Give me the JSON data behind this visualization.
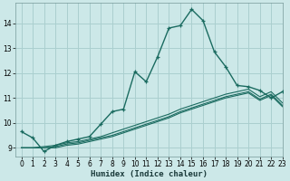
{
  "xlabel": "Humidex (Indice chaleur)",
  "bg_color": "#cce8e8",
  "grid_color": "#aacfcf",
  "line_color": "#1a6b60",
  "xlim": [
    -0.5,
    23
  ],
  "ylim": [
    8.65,
    14.8
  ],
  "yticks": [
    9,
    10,
    11,
    12,
    13,
    14
  ],
  "xticks": [
    0,
    1,
    2,
    3,
    4,
    5,
    6,
    7,
    8,
    9,
    10,
    11,
    12,
    13,
    14,
    15,
    16,
    17,
    18,
    19,
    20,
    21,
    22,
    23
  ],
  "curve1_x": [
    0,
    1,
    2,
    3,
    4,
    5,
    6,
    7,
    8,
    9,
    10,
    11,
    12,
    13,
    14,
    15,
    16,
    17,
    18,
    19,
    20,
    21,
    22,
    23
  ],
  "curve1_y": [
    9.65,
    9.4,
    8.85,
    9.1,
    9.25,
    9.35,
    9.45,
    9.95,
    10.45,
    10.55,
    12.05,
    11.65,
    12.65,
    13.8,
    13.9,
    14.55,
    14.1,
    12.85,
    12.25,
    11.5,
    11.45,
    11.3,
    11.0,
    11.25
  ],
  "curve2_x": [
    0,
    1,
    2,
    3,
    4,
    5,
    6,
    7,
    8,
    9,
    10,
    11,
    12,
    13,
    14,
    15,
    16,
    17,
    18,
    19,
    20,
    21,
    22,
    23
  ],
  "curve2_y": [
    9.0,
    9.0,
    9.05,
    9.1,
    9.2,
    9.25,
    9.35,
    9.45,
    9.6,
    9.75,
    9.9,
    10.05,
    10.2,
    10.35,
    10.55,
    10.7,
    10.85,
    11.0,
    11.15,
    11.25,
    11.35,
    11.05,
    11.25,
    10.8
  ],
  "curve3_x": [
    0,
    1,
    2,
    3,
    4,
    5,
    6,
    7,
    8,
    9,
    10,
    11,
    12,
    13,
    14,
    15,
    16,
    17,
    18,
    19,
    20,
    21,
    22,
    23
  ],
  "curve3_y": [
    9.0,
    9.0,
    9.0,
    9.05,
    9.15,
    9.2,
    9.3,
    9.4,
    9.5,
    9.65,
    9.8,
    9.95,
    10.1,
    10.25,
    10.45,
    10.6,
    10.75,
    10.9,
    11.05,
    11.15,
    11.25,
    10.95,
    11.15,
    10.7
  ],
  "curve4_x": [
    0,
    1,
    2,
    3,
    4,
    5,
    6,
    7,
    8,
    9,
    10,
    11,
    12,
    13,
    14,
    15,
    16,
    17,
    18,
    19,
    20,
    21,
    22,
    23
  ],
  "curve4_y": [
    9.0,
    9.0,
    9.0,
    9.0,
    9.1,
    9.15,
    9.25,
    9.35,
    9.45,
    9.6,
    9.75,
    9.9,
    10.05,
    10.2,
    10.4,
    10.55,
    10.7,
    10.85,
    11.0,
    11.1,
    11.2,
    10.9,
    11.1,
    10.65
  ]
}
